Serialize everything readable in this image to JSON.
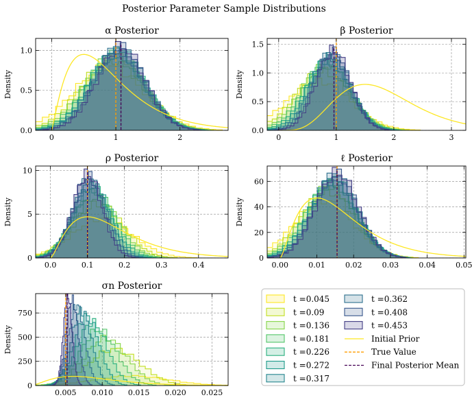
{
  "figure": {
    "title": "Posterior Parameter Sample Distributions",
    "colors": {
      "t1": "#fde725",
      "t2": "#c2df23",
      "t3": "#86d549",
      "t4": "#52c569",
      "t5": "#2ab07f",
      "t6": "#1e9b8a",
      "t7": "#25858e",
      "t8": "#2d708e",
      "t9": "#38588c",
      "t10": "#433e85",
      "prior": "#fde725",
      "true": "#ff9d00",
      "mean": "#440154"
    }
  },
  "legend": {
    "entries": [
      {
        "label": "t =0.045",
        "kind": "hist",
        "color": "#fde725"
      },
      {
        "label": "t =0.09",
        "kind": "hist",
        "color": "#c2df23"
      },
      {
        "label": "t =0.136",
        "kind": "hist",
        "color": "#86d549"
      },
      {
        "label": "t =0.181",
        "kind": "hist",
        "color": "#52c569"
      },
      {
        "label": "t =0.226",
        "kind": "hist",
        "color": "#2ab07f"
      },
      {
        "label": "t =0.272",
        "kind": "hist",
        "color": "#1e9b8a"
      },
      {
        "label": "t =0.317",
        "kind": "hist",
        "color": "#25858e"
      },
      {
        "label": "t =0.362",
        "kind": "hist",
        "color": "#2d708e"
      },
      {
        "label": "t =0.408",
        "kind": "hist",
        "color": "#38588c"
      },
      {
        "label": "t =0.453",
        "kind": "hist",
        "color": "#433e85"
      },
      {
        "label": "Initial Prior",
        "kind": "line",
        "color": "#fde725"
      },
      {
        "label": "True Value",
        "kind": "dash",
        "color": "#ff9d00"
      },
      {
        "label": "Final Posterior Mean",
        "kind": "dash",
        "color": "#440154"
      }
    ]
  },
  "chart_data": [
    {
      "type": "area",
      "title": "α Posterior",
      "ylabel": "Density",
      "xlim": [
        -0.25,
        2.75
      ],
      "ylim": [
        0,
        1.15
      ],
      "xticks": [
        0,
        1,
        2
      ],
      "xtick_labels": [
        "0",
        "1",
        "2"
      ],
      "yticks": [
        0,
        0.5,
        1.0
      ],
      "ytick_labels": [
        "0.0",
        "0.5",
        "1.0"
      ],
      "true_value": 1.0,
      "final_mean": 1.08,
      "hist_center": 1.08,
      "hist_sd": 0.38,
      "hist_peak": 1.05,
      "first_center": 0.9,
      "first_sd": 0.55,
      "first_peak": 0.8,
      "prior": {
        "shape": "gamma",
        "mode": 0.5,
        "peak": 0.95,
        "k": 2.2
      }
    },
    {
      "type": "area",
      "title": "β Posterior",
      "ylabel": "Density",
      "xlim": [
        -0.2,
        3.25
      ],
      "ylim": [
        0,
        1.6
      ],
      "xticks": [
        0,
        1,
        2,
        3
      ],
      "xtick_labels": [
        "0",
        "1",
        "2",
        "3"
      ],
      "yticks": [
        0,
        0.5,
        1.0,
        1.5
      ],
      "ytick_labels": [
        "0.0",
        "0.5",
        "1.0",
        "1.5"
      ],
      "true_value": 1.0,
      "final_mean": 0.96,
      "hist_center": 0.95,
      "hist_sd": 0.3,
      "hist_peak": 1.4,
      "first_center": 0.7,
      "first_sd": 0.55,
      "first_peak": 0.85,
      "prior": {
        "shape": "gamma",
        "mode": 1.5,
        "peak": 0.8,
        "k": 6.0
      }
    },
    {
      "type": "area",
      "title": "ρ Posterior",
      "ylabel": "Density",
      "xlim": [
        -0.04,
        0.48
      ],
      "ylim": [
        0,
        10.5
      ],
      "xticks": [
        0.0,
        0.1,
        0.2,
        0.3,
        0.4
      ],
      "xtick_labels": [
        "0.0",
        "0.1",
        "0.2",
        "0.3",
        "0.4"
      ],
      "yticks": [
        0,
        5,
        10
      ],
      "ytick_labels": [
        "0",
        "5",
        "10"
      ],
      "true_value": 0.1,
      "final_mean": 0.1,
      "hist_center": 0.1,
      "hist_sd": 0.04,
      "hist_peak": 9.6,
      "first_center": 0.14,
      "first_sd": 0.08,
      "first_peak": 4.5,
      "prior": {
        "shape": "gamma",
        "mode": 0.1,
        "peak": 4.7,
        "k": 2.5
      }
    },
    {
      "type": "area",
      "title": "ℓ Posterior",
      "ylabel": "Density",
      "xlim": [
        -0.0035,
        0.0505
      ],
      "ylim": [
        0,
        72
      ],
      "xticks": [
        0.0,
        0.01,
        0.02,
        0.03,
        0.04,
        0.05
      ],
      "xtick_labels": [
        "0.00",
        "0.01",
        "0.02",
        "0.03",
        "0.04",
        "0.05"
      ],
      "yticks": [
        0,
        20,
        40,
        60
      ],
      "ytick_labels": [
        "0",
        "20",
        "40",
        "60"
      ],
      "true_value": 0.0155,
      "final_mean": 0.0155,
      "hist_center": 0.0155,
      "hist_sd": 0.0058,
      "hist_peak": 67,
      "first_center": 0.012,
      "first_sd": 0.008,
      "first_peak": 45,
      "prior": {
        "shape": "gamma",
        "mode": 0.01,
        "peak": 47,
        "k": 2.5
      }
    },
    {
      "type": "area",
      "title": "σn Posterior",
      "ylabel": "Density",
      "xlim": [
        0.0009,
        0.0272
      ],
      "ylim": [
        0,
        950
      ],
      "xticks": [
        0.005,
        0.01,
        0.015,
        0.02,
        0.025
      ],
      "xtick_labels": [
        "0.005",
        "0.010",
        "0.015",
        "0.020",
        "0.025"
      ],
      "yticks": [
        0,
        250,
        500,
        750
      ],
      "ytick_labels": [
        "0",
        "250",
        "500",
        "750"
      ],
      "true_value": 0.005,
      "final_mean": 0.0052,
      "hist_center": 0.0053,
      "hist_sd": 0.0006,
      "hist_peak": 930,
      "first_center": 0.014,
      "first_sd": 0.005,
      "first_peak": 100,
      "prior": {
        "shape": "gamma",
        "mode": 0.006,
        "peak": 95,
        "k": 3.0
      }
    }
  ]
}
